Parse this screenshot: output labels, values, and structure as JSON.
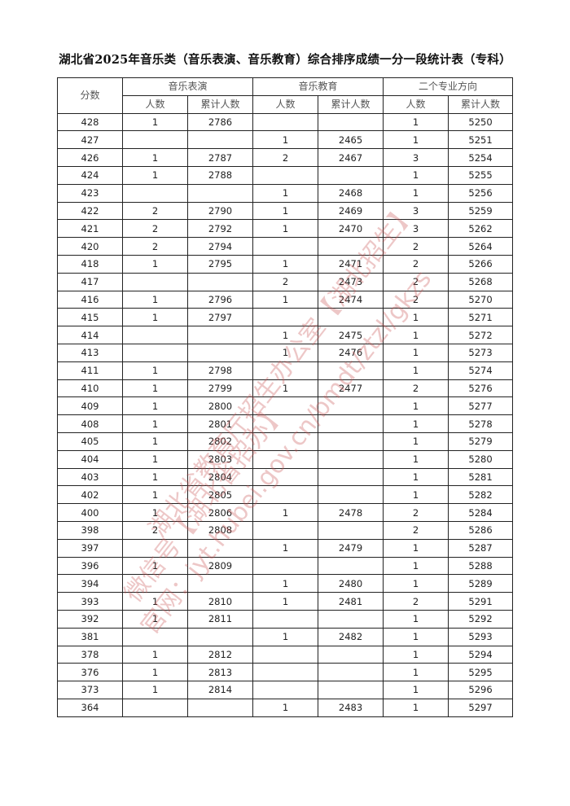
{
  "title": "湖北省2025年音乐类（音乐表演、音乐教育）综合排序成绩一分一段统计表（专科）",
  "header": {
    "score": "分数",
    "groups": [
      "音乐表演",
      "音乐教育",
      "二个专业方向"
    ],
    "sub": [
      "人数",
      "累计人数",
      "人数",
      "累计人数",
      "人数",
      "累计人数"
    ]
  },
  "rows": [
    [
      "428",
      "1",
      "2786",
      "",
      "",
      "1",
      "5250"
    ],
    [
      "427",
      "",
      "",
      "1",
      "2465",
      "1",
      "5251"
    ],
    [
      "426",
      "1",
      "2787",
      "2",
      "2467",
      "3",
      "5254"
    ],
    [
      "424",
      "1",
      "2788",
      "",
      "",
      "1",
      "5255"
    ],
    [
      "423",
      "",
      "",
      "1",
      "2468",
      "1",
      "5256"
    ],
    [
      "422",
      "2",
      "2790",
      "1",
      "2469",
      "3",
      "5259"
    ],
    [
      "421",
      "2",
      "2792",
      "1",
      "2470",
      "3",
      "5262"
    ],
    [
      "420",
      "2",
      "2794",
      "",
      "",
      "2",
      "5264"
    ],
    [
      "418",
      "1",
      "2795",
      "1",
      "2471",
      "2",
      "5266"
    ],
    [
      "417",
      "",
      "",
      "2",
      "2473",
      "2",
      "5268"
    ],
    [
      "416",
      "1",
      "2796",
      "1",
      "2474",
      "2",
      "5270"
    ],
    [
      "415",
      "1",
      "2797",
      "",
      "",
      "1",
      "5271"
    ],
    [
      "414",
      "",
      "",
      "1",
      "2475",
      "1",
      "5272"
    ],
    [
      "413",
      "",
      "",
      "1",
      "2476",
      "1",
      "5273"
    ],
    [
      "411",
      "1",
      "2798",
      "",
      "",
      "1",
      "5274"
    ],
    [
      "410",
      "1",
      "2799",
      "1",
      "2477",
      "2",
      "5276"
    ],
    [
      "409",
      "1",
      "2800",
      "",
      "",
      "1",
      "5277"
    ],
    [
      "408",
      "1",
      "2801",
      "",
      "",
      "1",
      "5278"
    ],
    [
      "405",
      "1",
      "2802",
      "",
      "",
      "1",
      "5279"
    ],
    [
      "404",
      "1",
      "2803",
      "",
      "",
      "1",
      "5280"
    ],
    [
      "403",
      "1",
      "2804",
      "",
      "",
      "1",
      "5281"
    ],
    [
      "402",
      "1",
      "2805",
      "",
      "",
      "1",
      "5282"
    ],
    [
      "400",
      "1",
      "2806",
      "1",
      "2478",
      "2",
      "5284"
    ],
    [
      "398",
      "2",
      "2808",
      "",
      "",
      "2",
      "5286"
    ],
    [
      "397",
      "",
      "",
      "1",
      "2479",
      "1",
      "5287"
    ],
    [
      "396",
      "1",
      "2809",
      "",
      "",
      "1",
      "5288"
    ],
    [
      "394",
      "",
      "",
      "1",
      "2480",
      "1",
      "5289"
    ],
    [
      "393",
      "1",
      "2810",
      "1",
      "2481",
      "2",
      "5291"
    ],
    [
      "392",
      "1",
      "2811",
      "",
      "",
      "1",
      "5292"
    ],
    [
      "381",
      "",
      "",
      "1",
      "2482",
      "1",
      "5293"
    ],
    [
      "378",
      "1",
      "2812",
      "",
      "",
      "1",
      "5294"
    ],
    [
      "376",
      "1",
      "2813",
      "",
      "",
      "1",
      "5295"
    ],
    [
      "373",
      "1",
      "2814",
      "",
      "",
      "1",
      "5296"
    ],
    [
      "364",
      "",
      "",
      "1",
      "2483",
      "1",
      "5297"
    ]
  ],
  "watermark": [
    "湖北省教育厅招生办公室【湖北招生】",
    "微信号【湖北省招办】",
    "官网：jyt.hubei.gov.cn/bmdt/ztzl/gkzs"
  ],
  "colors": {
    "watermark": "#d05050",
    "border": "#222222"
  }
}
